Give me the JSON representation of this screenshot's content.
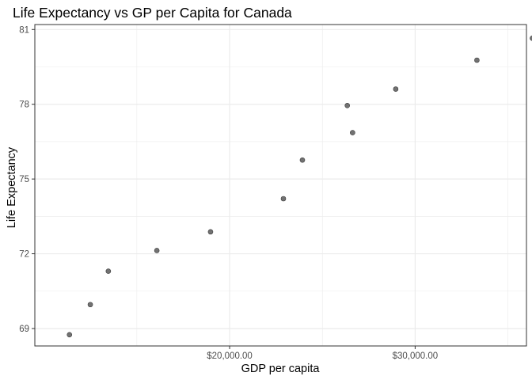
{
  "chart_data": {
    "type": "scatter",
    "title": "Life Expectancy vs GP per Capita for Canada",
    "xlabel": "GDP per capita",
    "ylabel": "Life Expectancy",
    "xlim": [
      9500,
      36000
    ],
    "ylim": [
      68.3,
      81.2
    ],
    "x_ticks": [
      {
        "value": 20000,
        "label": "$20,000.00"
      },
      {
        "value": 30000,
        "label": "$30,000.00"
      }
    ],
    "y_ticks": [
      {
        "value": 69,
        "label": "69"
      },
      {
        "value": 72,
        "label": "72"
      },
      {
        "value": 75,
        "label": "75"
      },
      {
        "value": 78,
        "label": "78"
      },
      {
        "value": 81,
        "label": "81"
      }
    ],
    "grid": true,
    "points": [
      {
        "x": 11367,
        "y": 68.75
      },
      {
        "x": 12490,
        "y": 69.96
      },
      {
        "x": 13462,
        "y": 71.3
      },
      {
        "x": 16077,
        "y": 72.13
      },
      {
        "x": 18971,
        "y": 72.88
      },
      {
        "x": 22899,
        "y": 74.21
      },
      {
        "x": 23923,
        "y": 75.76
      },
      {
        "x": 26627,
        "y": 76.86
      },
      {
        "x": 26343,
        "y": 77.95
      },
      {
        "x": 28954,
        "y": 78.61
      },
      {
        "x": 33329,
        "y": 79.77
      },
      {
        "x": 36319,
        "y": 80.65
      }
    ],
    "point_color": "#595959",
    "panel_border_color": "#333333",
    "grid_color": "#ebebeb"
  }
}
